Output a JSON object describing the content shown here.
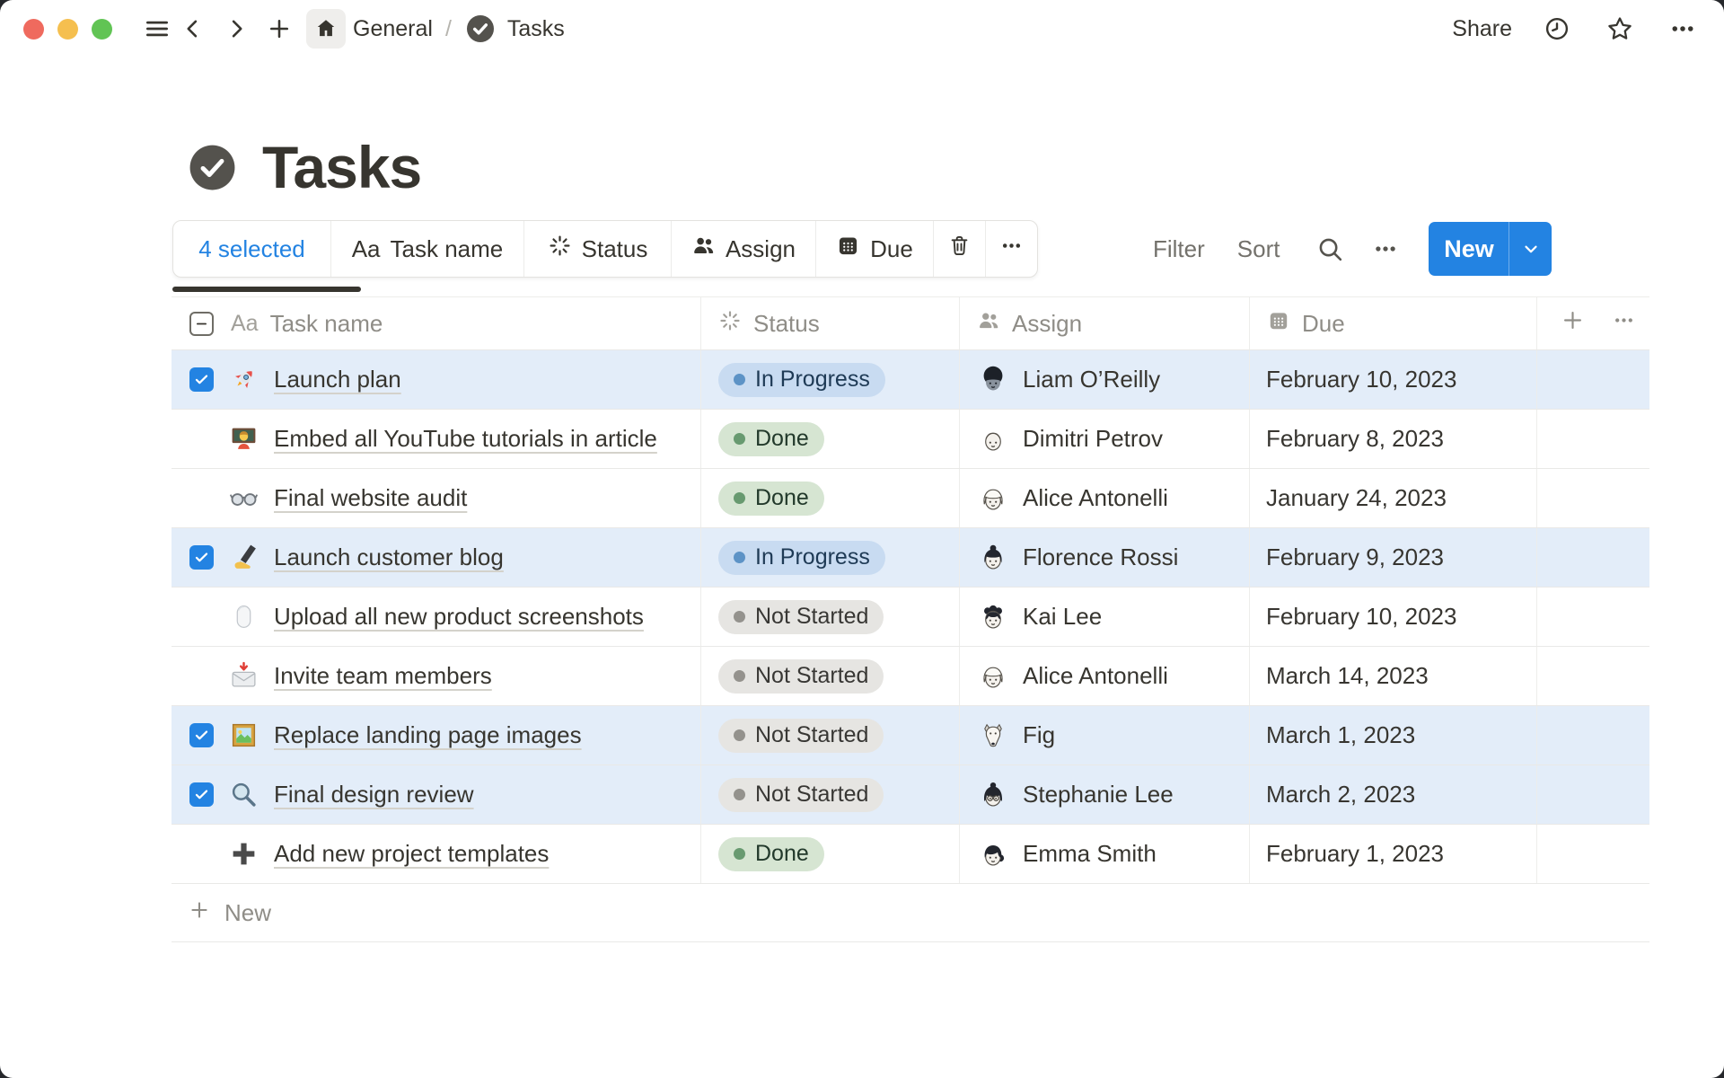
{
  "topbar": {
    "breadcrumb_section": "General",
    "breadcrumb_separator": "/",
    "breadcrumb_page": "Tasks",
    "share_label": "Share",
    "icons": [
      "sidebar-menu-icon",
      "back-icon",
      "forward-icon",
      "new-page-icon",
      "home-icon",
      "clock-icon",
      "star-icon",
      "more-icon"
    ]
  },
  "page": {
    "title": "Tasks",
    "icon": "check-circle-icon"
  },
  "selection_toolbar": {
    "selected_label": "4 selected",
    "aa_glyph": "Aa",
    "properties": [
      {
        "icon": "text-property-icon",
        "label": "Task name"
      },
      {
        "icon": "status-spinner-icon",
        "label": "Status"
      },
      {
        "icon": "people-icon",
        "label": "Assign"
      },
      {
        "icon": "calendar-icon",
        "label": "Due"
      }
    ],
    "trash_icon": "trash-icon",
    "more_icon": "more-icon"
  },
  "view_controls": {
    "filter_label": "Filter",
    "sort_label": "Sort",
    "search_icon": "search-icon",
    "more_icon": "more-icon",
    "new_label": "New"
  },
  "table": {
    "columns": [
      {
        "key": "task",
        "label": "Task name",
        "icon": "text-property-icon"
      },
      {
        "key": "status",
        "label": "Status",
        "icon": "status-spinner-icon"
      },
      {
        "key": "assign",
        "label": "Assign",
        "icon": "people-icon"
      },
      {
        "key": "due",
        "label": "Due",
        "icon": "calendar-icon"
      }
    ],
    "rows": [
      {
        "selected": true,
        "icon": "rocket",
        "task": "Launch plan",
        "status": "In Progress",
        "assignee": "Liam O’Reilly",
        "avatar": "liam",
        "due": "February 10, 2023"
      },
      {
        "selected": false,
        "icon": "teacher",
        "task": "Embed all YouTube tutorials in article",
        "status": "Done",
        "assignee": "Dimitri Petrov",
        "avatar": "dimitri",
        "due": "February 8, 2023"
      },
      {
        "selected": false,
        "icon": "glasses",
        "task": "Final website audit",
        "status": "Done",
        "assignee": "Alice Antonelli",
        "avatar": "alice",
        "due": "January 24, 2023"
      },
      {
        "selected": true,
        "icon": "writing-hand",
        "task": "Launch customer blog",
        "status": "In Progress",
        "assignee": "Florence Rossi",
        "avatar": "florence",
        "due": "February 9, 2023"
      },
      {
        "selected": false,
        "icon": "mouse",
        "task": "Upload all new product screenshots",
        "status": "Not Started",
        "assignee": "Kai Lee",
        "avatar": "kai",
        "due": "February 10, 2023"
      },
      {
        "selected": false,
        "icon": "envelope",
        "task": "Invite team members",
        "status": "Not Started",
        "assignee": "Alice Antonelli",
        "avatar": "alice",
        "due": "March 14, 2023"
      },
      {
        "selected": true,
        "icon": "picture",
        "task": "Replace landing page images",
        "status": "Not Started",
        "assignee": "Fig",
        "avatar": "fig",
        "due": "March 1, 2023"
      },
      {
        "selected": true,
        "icon": "magnifier",
        "task": "Final design review",
        "status": "Not Started",
        "assignee": "Stephanie Lee",
        "avatar": "stephanie",
        "due": "March 2, 2023"
      },
      {
        "selected": false,
        "icon": "plus",
        "task": "Add new project templates",
        "status": "Done",
        "assignee": "Emma Smith",
        "avatar": "emma",
        "due": "February 1, 2023"
      }
    ],
    "new_row_label": "New",
    "add_column_icon": "add-column-icon",
    "more_icon": "more-icon"
  },
  "statuses": {
    "In Progress": {
      "bg": "#c8dbf1",
      "dot": "#5d93c6",
      "text": "#1e3a55"
    },
    "Done": {
      "bg": "#d6e5d2",
      "dot": "#689a70",
      "text": "#22392b"
    },
    "Not Started": {
      "bg": "#e6e5e2",
      "dot": "#94928d",
      "text": "#383734"
    }
  },
  "colors": {
    "accent_blue": "#2383e2",
    "selected_row_bg": "#e3edf9",
    "row_border": "#e9e9e7",
    "text_main": "#37352f",
    "text_muted": "#8f8d87",
    "scrollbar": "#37352f",
    "traffic_red": "#ef6a5e",
    "traffic_yellow": "#f5bf4f",
    "traffic_green": "#61c454"
  }
}
